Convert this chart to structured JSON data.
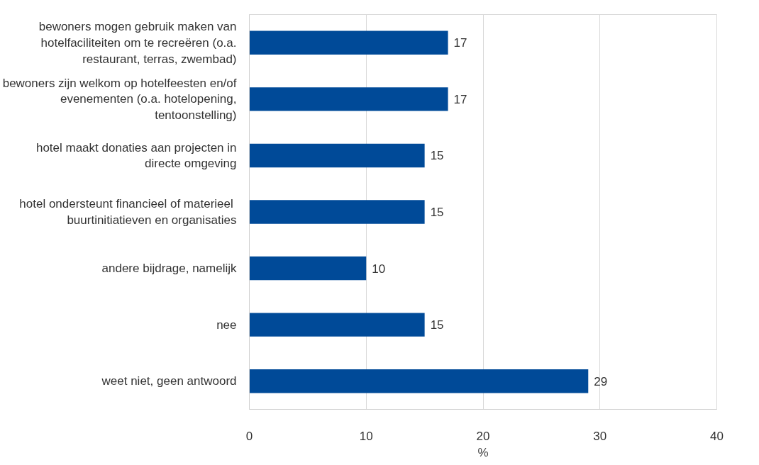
{
  "chart_data": {
    "type": "bar",
    "orientation": "horizontal",
    "categories": [
      "bewoners mogen gebruik maken van hotelfaciliteiten om te recreëren (o.a. restaurant, terras, zwembad)",
      "bewoners zijn welkom op hotelfeesten en/of evenementen (o.a. hotelopening, tentoonstelling)",
      "hotel maakt donaties aan projecten in directe omgeving",
      "hotel ondersteunt  financieel of materieel buurtinitiatieven en organisaties",
      "andere bijdrage, namelijk",
      "nee",
      "weet niet, geen antwoord"
    ],
    "values": [
      17,
      17,
      15,
      15,
      10,
      15,
      29
    ],
    "color": "#004a98",
    "xlim": [
      0,
      40
    ],
    "xticks": [
      0,
      10,
      20,
      30,
      40
    ],
    "xlabel": "%",
    "grid": "x",
    "data_labels": true
  }
}
